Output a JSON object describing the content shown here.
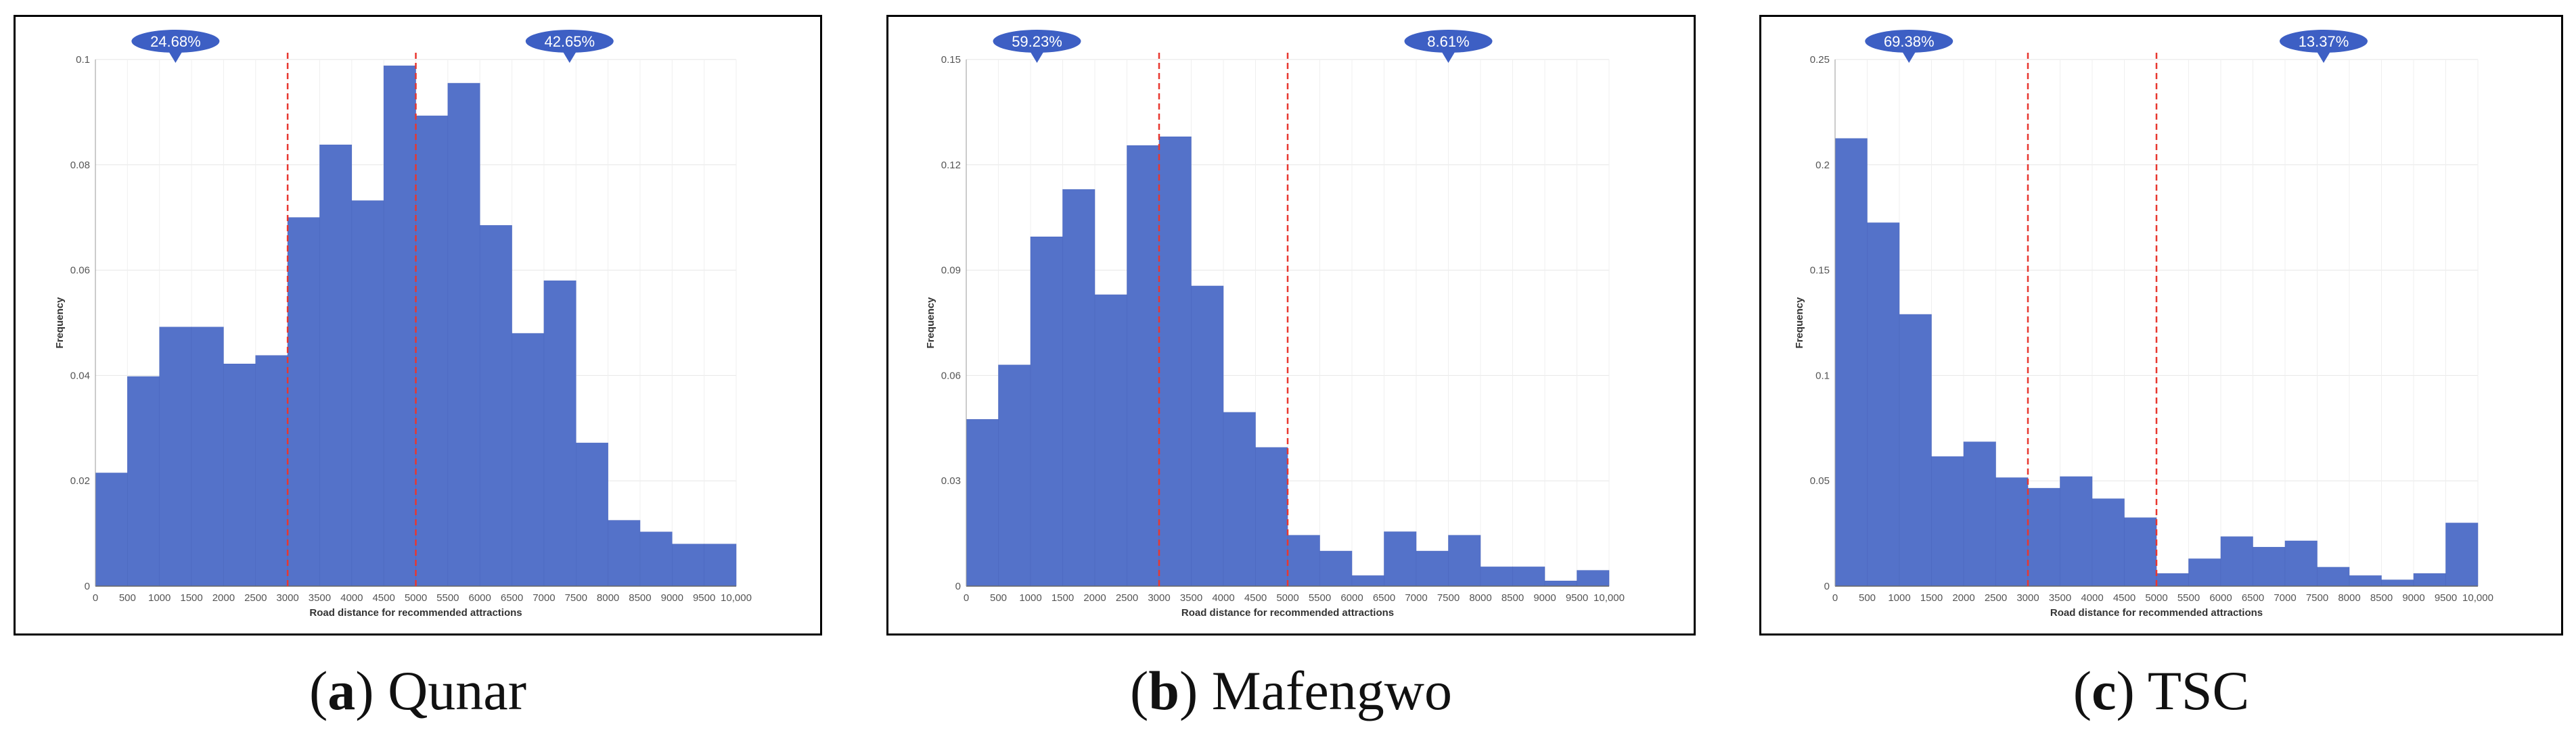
{
  "chart_data": [
    {
      "type": "bar",
      "panel": "a",
      "caption_letter": "a",
      "caption_name": "Qunar",
      "xlabel": "Road distance for recommended attractions",
      "ylabel": "Frequency",
      "xlim": [
        0,
        10000
      ],
      "ylim": [
        0,
        0.1
      ],
      "yticks": [
        "0",
        "0.02",
        "0.04",
        "0.06",
        "0.08",
        "0.1"
      ],
      "yticks_values": [
        0,
        0.02,
        0.04,
        0.06,
        0.08,
        0.1
      ],
      "xticks": [
        "0",
        "500",
        "1000",
        "1500",
        "2000",
        "2500",
        "3000",
        "3500",
        "4000",
        "4500",
        "5000",
        "5500",
        "6000",
        "6500",
        "7000",
        "7500",
        "8000",
        "8500",
        "9000",
        "9500",
        "10,000"
      ],
      "bin_width": 500,
      "values": [
        0.0215,
        0.0398,
        0.0492,
        0.0492,
        0.0422,
        0.0438,
        0.07,
        0.0838,
        0.0732,
        0.0988,
        0.0893,
        0.0955,
        0.0685,
        0.048,
        0.058,
        0.0272,
        0.0125,
        0.0103,
        0.008,
        0.008
      ],
      "thresholds": [
        3000,
        5000
      ],
      "annotations": [
        {
          "label": "24.68%",
          "x": 1250
        },
        {
          "label": "42.65%",
          "x": 7400
        }
      ],
      "bar_color": "#5472c9",
      "threshold_color": "#e8372f",
      "badge_color": "#3d5fc4"
    },
    {
      "type": "bar",
      "panel": "b",
      "caption_letter": "b",
      "caption_name": "Mafengwo",
      "xlabel": "Road distance for recommended attractions",
      "ylabel": "Frequency",
      "xlim": [
        0,
        10000
      ],
      "ylim": [
        0,
        0.15
      ],
      "yticks": [
        "0",
        "0.03",
        "0.06",
        "0.09",
        "0.12",
        "0.15"
      ],
      "yticks_values": [
        0,
        0.03,
        0.06,
        0.09,
        0.12,
        0.15
      ],
      "xticks": [
        "0",
        "500",
        "1000",
        "1500",
        "2000",
        "2500",
        "3000",
        "3500",
        "4000",
        "4500",
        "5000",
        "5500",
        "6000",
        "6500",
        "7000",
        "7500",
        "8000",
        "8500",
        "9000",
        "9500",
        "10,000"
      ],
      "bin_width": 500,
      "values": [
        0.0475,
        0.063,
        0.0995,
        0.113,
        0.083,
        0.1255,
        0.128,
        0.0855,
        0.0495,
        0.0395,
        0.0145,
        0.01,
        0.003,
        0.0155,
        0.01,
        0.0145,
        0.0055,
        0.0055,
        0.0015,
        0.0045
      ],
      "thresholds": [
        3000,
        5000
      ],
      "annotations": [
        {
          "label": "59.23%",
          "x": 1100
        },
        {
          "label": "8.61%",
          "x": 7500
        }
      ],
      "bar_color": "#5472c9",
      "threshold_color": "#e8372f",
      "badge_color": "#3d5fc4"
    },
    {
      "type": "bar",
      "panel": "c",
      "caption_letter": "c",
      "caption_name": "TSC",
      "xlabel": "Road distance for recommended attractions",
      "ylabel": "Frequency",
      "xlim": [
        0,
        10000
      ],
      "ylim": [
        0,
        0.25
      ],
      "yticks": [
        "0",
        "0.05",
        "0.1",
        "0.15",
        "0.2",
        "0.25"
      ],
      "yticks_values": [
        0,
        0.05,
        0.1,
        0.15,
        0.2,
        0.25
      ],
      "xticks": [
        "0",
        "500",
        "1000",
        "1500",
        "2000",
        "2500",
        "3000",
        "3500",
        "4000",
        "4500",
        "5000",
        "5500",
        "6000",
        "6500",
        "7000",
        "7500",
        "8000",
        "8500",
        "9000",
        "9500",
        "10,000"
      ],
      "bin_width": 500,
      "values": [
        0.2125,
        0.1725,
        0.129,
        0.0615,
        0.0685,
        0.0515,
        0.0465,
        0.052,
        0.0415,
        0.0325,
        0.006,
        0.013,
        0.0235,
        0.0185,
        0.0215,
        0.009,
        0.005,
        0.003,
        0.006,
        0.03
      ],
      "thresholds": [
        3000,
        5000
      ],
      "annotations": [
        {
          "label": "69.38%",
          "x": 1150
        },
        {
          "label": "13.37%",
          "x": 7600
        }
      ],
      "bar_color": "#5472c9",
      "threshold_color": "#e8372f",
      "badge_color": "#3d5fc4"
    }
  ]
}
